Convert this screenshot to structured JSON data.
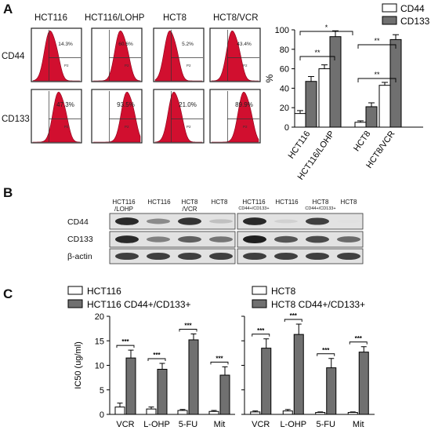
{
  "panel_labels": [
    "A",
    "B",
    "C"
  ],
  "flow": {
    "columns": [
      "HCT116",
      "HCT116/LOHP",
      "HCT8",
      "HCT8/VCR"
    ],
    "rows": [
      "CD44",
      "CD133"
    ],
    "gate": "P2",
    "values": [
      [
        "14.3%",
        "60.6%",
        "5.2%",
        "43.4%"
      ],
      [
        "47.3%",
        "93.5%",
        "21.0%",
        "89.9%"
      ]
    ],
    "colors": {
      "fill": "#d10f2f",
      "frame": "#222222"
    }
  },
  "chart_data": [
    {
      "type": "bar",
      "categories": [
        "HCT116",
        "HCT116/LOHP",
        "HCT8",
        "HCT8/VCR"
      ],
      "series": [
        {
          "name": "CD44",
          "values": [
            14,
            60,
            5,
            43
          ],
          "errors": [
            3,
            4,
            1.5,
            3
          ]
        },
        {
          "name": "CD133",
          "values": [
            47,
            93,
            21,
            90
          ],
          "errors": [
            5,
            6,
            4,
            5
          ]
        }
      ],
      "ylabel": "%",
      "ylim": [
        0,
        100
      ],
      "yticks": [
        0,
        20,
        40,
        60,
        80,
        100
      ],
      "significance": [
        {
          "from": 0,
          "to": 1,
          "label": "**"
        },
        {
          "from": 0,
          "to": 1,
          "label": "*"
        },
        {
          "from": 2,
          "to": 3,
          "label": "**"
        },
        {
          "from": 2,
          "to": 3,
          "label": "**"
        }
      ],
      "legend_position": "top-right",
      "colors": {
        "CD44": "#ffffff",
        "CD133": "#707070"
      }
    },
    {
      "type": "bar",
      "categories": [
        "VCR",
        "L-OHP",
        "5-FU",
        "Mit"
      ],
      "series": [
        {
          "name": "HCT116",
          "values": [
            1.5,
            1.1,
            0.8,
            0.6
          ],
          "errors": [
            0.8,
            0.4,
            0.2,
            0.2
          ]
        },
        {
          "name": "HCT116 CD44+/CD133+",
          "values": [
            11.5,
            9.2,
            15.2,
            8.0
          ],
          "errors": [
            1.6,
            1.2,
            1.2,
            1.7
          ]
        }
      ],
      "ylabel": "IC50 (ug/ml)",
      "ylim": [
        0,
        20
      ],
      "yticks": [
        0,
        5,
        10,
        15,
        20
      ],
      "significance_label": "***",
      "legend_position": "top",
      "colors": {
        "HCT116": "#ffffff",
        "HCT116 CD44+/CD133+": "#707070"
      }
    },
    {
      "type": "bar",
      "categories": [
        "VCR",
        "L-OHP",
        "5-FU",
        "Mit"
      ],
      "series": [
        {
          "name": "HCT8",
          "values": [
            0.5,
            0.7,
            0.4,
            0.4
          ],
          "errors": [
            0.2,
            0.3,
            0.1,
            0.1
          ]
        },
        {
          "name": "HCT8 CD44+/CD133+",
          "values": [
            13.5,
            16.3,
            9.5,
            12.7
          ],
          "errors": [
            1.9,
            2.1,
            1.9,
            1.1
          ]
        }
      ],
      "ylim": [
        0,
        20
      ],
      "significance_label": "***",
      "legend_position": "top",
      "colors": {
        "HCT8": "#ffffff",
        "HCT8 CD44+/CD133+": "#707070"
      }
    }
  ],
  "western": {
    "lanes_left": [
      {
        "line1": "HCT116",
        "line2": "/LOHP"
      },
      {
        "line1": "HCT116",
        "line2": ""
      },
      {
        "line1": "HCT8",
        "line2": "/VCR"
      },
      {
        "line1": "HCT8",
        "line2": ""
      }
    ],
    "lanes_right": [
      {
        "line1": "HCT116",
        "line2": "CD44+/CD133+"
      },
      {
        "line1": "HCT116",
        "line2": ""
      },
      {
        "line1": "HCT8",
        "line2": "CD44+/CD133+"
      },
      {
        "line1": "HCT8",
        "line2": ""
      }
    ],
    "markers": [
      "CD44",
      "CD133",
      "β-actin"
    ],
    "intensity": {
      "CD44": [
        0.9,
        0.45,
        0.85,
        0.2,
        0.9,
        0.12,
        0.8,
        0.05
      ],
      "CD133": [
        0.9,
        0.5,
        0.65,
        0.55,
        0.95,
        0.7,
        0.75,
        0.6
      ],
      "beta_actin": [
        0.8,
        0.8,
        0.8,
        0.8,
        0.8,
        0.8,
        0.8,
        0.8
      ]
    }
  }
}
